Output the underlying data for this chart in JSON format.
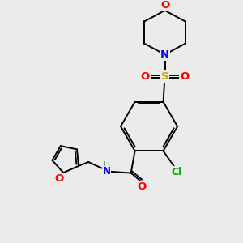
{
  "background_color": "#ebebeb",
  "atom_colors": {
    "C": "#000000",
    "H": "#6fa0a0",
    "N": "#0000FF",
    "O": "#FF0000",
    "S": "#ccaa00",
    "Cl": "#00AA00"
  },
  "bond_color": "#000000",
  "figsize": [
    3.0,
    3.0
  ],
  "dpi": 100,
  "lw": 1.4
}
